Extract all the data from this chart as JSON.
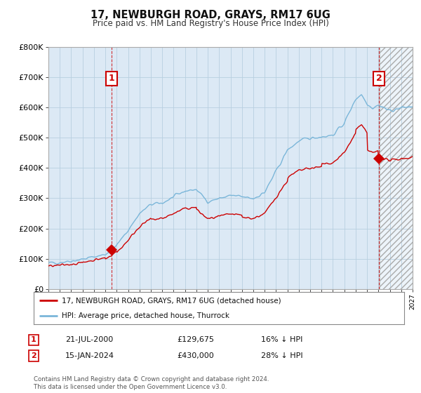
{
  "title": "17, NEWBURGH ROAD, GRAYS, RM17 6UG",
  "subtitle": "Price paid vs. HM Land Registry's House Price Index (HPI)",
  "legend_line1": "17, NEWBURGH ROAD, GRAYS, RM17 6UG (detached house)",
  "legend_line2": "HPI: Average price, detached house, Thurrock",
  "annotation1_label": "1",
  "annotation1_date": "21-JUL-2000",
  "annotation1_price": "£129,675",
  "annotation1_hpi": "16% ↓ HPI",
  "annotation2_label": "2",
  "annotation2_date": "15-JAN-2024",
  "annotation2_price": "£430,000",
  "annotation2_hpi": "28% ↓ HPI",
  "footer": "Contains HM Land Registry data © Crown copyright and database right 2024.\nThis data is licensed under the Open Government Licence v3.0.",
  "hpi_color": "#7ab6d9",
  "price_color": "#cc0000",
  "background_color": "#ffffff",
  "plot_bg_color": "#dce9f5",
  "grid_color": "#b8cfe0",
  "hatch_color": "#c0c0c0",
  "ylim": [
    0,
    800000
  ],
  "sale1_year": 2000.55,
  "sale1_price": 129675,
  "sale2_year": 2024.04,
  "sale2_price": 430000,
  "xmin": 1995,
  "xmax": 2027,
  "hatch_start": 2024.1
}
